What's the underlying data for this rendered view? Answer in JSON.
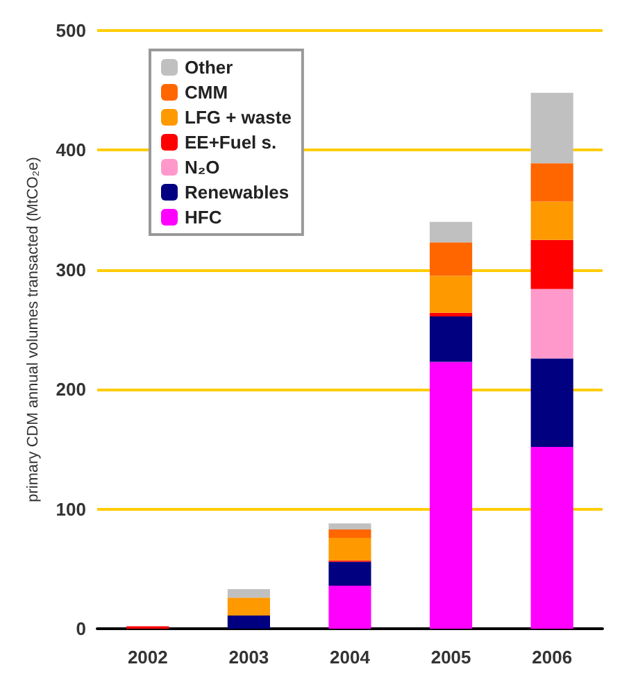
{
  "chart_data": {
    "type": "bar",
    "stacked": true,
    "ylabel": "primary CDM annual volumes transacted (MtCO₂e)",
    "categories": [
      "2002",
      "2003",
      "2004",
      "2005",
      "2006"
    ],
    "series": [
      {
        "name": "HFC",
        "color": "#ff00ff",
        "values": [
          null,
          null,
          36,
          223,
          152
        ]
      },
      {
        "name": "Renewables",
        "color": "#000080",
        "values": [
          null,
          11,
          20,
          38,
          74
        ]
      },
      {
        "name": "N₂O",
        "color": "#ff99cc",
        "values": [
          null,
          null,
          null,
          null,
          58
        ]
      },
      {
        "name": "EE+Fuel s.",
        "color": "#ff0000",
        "values": [
          2,
          null,
          1,
          3,
          41
        ]
      },
      {
        "name": "LFG + waste",
        "color": "#ff9900",
        "values": [
          null,
          15,
          19,
          31,
          32
        ]
      },
      {
        "name": "CMM",
        "color": "#ff6600",
        "values": [
          null,
          null,
          7,
          28,
          32
        ]
      },
      {
        "name": "Other",
        "color": "#c0c0c0",
        "values": [
          0,
          7,
          5,
          17,
          59
        ]
      }
    ],
    "ylim": [
      0,
      500
    ],
    "yticks": [
      0,
      100,
      200,
      300,
      400,
      500
    ],
    "grid": "y",
    "legend": "top left"
  }
}
